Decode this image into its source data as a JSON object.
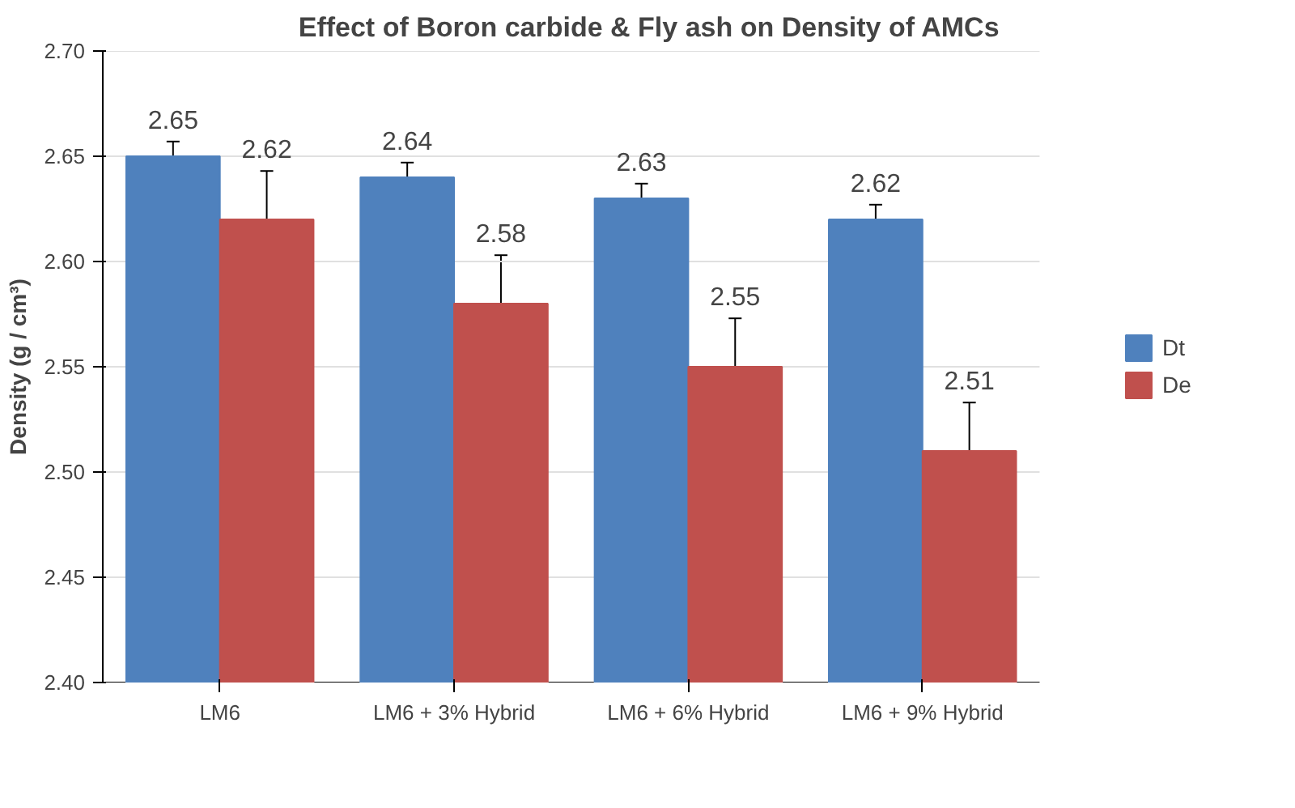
{
  "chart_data": {
    "type": "bar",
    "title": "Effect of Boron carbide & Fly ash  on Density of AMCs",
    "ylabel": "Density (g / cm³)",
    "categories": [
      "LM6",
      "LM6 + 3% Hybrid",
      "LM6 + 6% Hybrid",
      "LM6 + 9% Hybrid"
    ],
    "series": [
      {
        "name": "Dt",
        "color": "#4f81bd",
        "values": [
          2.65,
          2.64,
          2.63,
          2.62
        ],
        "errors": [
          0.007,
          0.007,
          0.007,
          0.007
        ]
      },
      {
        "name": "De",
        "color": "#c0504d",
        "values": [
          2.62,
          2.58,
          2.55,
          2.51
        ],
        "errors": [
          0.023,
          0.023,
          0.023,
          0.023
        ]
      }
    ],
    "ylim": [
      2.4,
      2.7
    ],
    "yticks": [
      {
        "value": 2.4,
        "label": "2.40"
      },
      {
        "value": 2.45,
        "label": "2.45"
      },
      {
        "value": 2.5,
        "label": "2.50"
      },
      {
        "value": 2.55,
        "label": "2.55"
      },
      {
        "value": 2.6,
        "label": "2.60"
      },
      {
        "value": 2.65,
        "label": "2.65"
      },
      {
        "value": 2.7,
        "label": "2.70"
      }
    ],
    "grid": "y",
    "legend": "right",
    "data_labels": true
  }
}
